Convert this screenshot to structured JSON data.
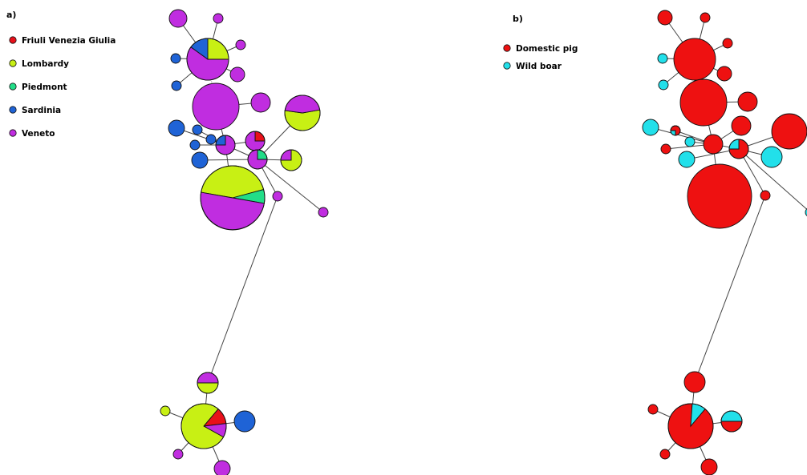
{
  "colors": {
    "friuli": "#e8101a",
    "lombardy": "#c8f014",
    "piedmont": "#22dd88",
    "sardinia": "#1f63d6",
    "veneto": "#c02de0",
    "domestic": "#ee1111",
    "wild": "#22e0ea"
  },
  "panel_a": {
    "label": "a)",
    "legend": [
      {
        "key": "friuli",
        "label": "Friuli Venezia Giulia"
      },
      {
        "key": "lombardy",
        "label": "Lombardy"
      },
      {
        "key": "piedmont",
        "label": "Piedmont"
      },
      {
        "key": "sardinia",
        "label": "Sardinia"
      },
      {
        "key": "veneto",
        "label": "Veneto"
      }
    ]
  },
  "panel_b": {
    "label": "b)",
    "legend": [
      {
        "key": "domestic",
        "label": "Domestic pig"
      },
      {
        "key": "wild",
        "label": "Wild boar"
      }
    ]
  },
  "network": {
    "nodes": [
      {
        "id": "H1",
        "a": [
          {
            "k": "veneto",
            "f": 1
          }
        ],
        "b": [
          {
            "k": "domestic",
            "f": 1
          }
        ]
      },
      {
        "id": "H2",
        "a": [
          {
            "k": "veneto",
            "f": 1
          }
        ],
        "b": [
          {
            "k": "domestic",
            "f": 1
          }
        ]
      },
      {
        "id": "H3",
        "a": [
          {
            "k": "lombardy",
            "f": 0.25
          },
          {
            "k": "veneto",
            "f": 0.6
          },
          {
            "k": "sardinia",
            "f": 0.15
          }
        ],
        "b": [
          {
            "k": "domestic",
            "f": 1
          }
        ]
      },
      {
        "id": "H4",
        "a": [
          {
            "k": "veneto",
            "f": 1
          }
        ],
        "b": [
          {
            "k": "domestic",
            "f": 1
          }
        ]
      },
      {
        "id": "H5",
        "a": [
          {
            "k": "sardinia",
            "f": 1
          }
        ],
        "b": [
          {
            "k": "wild",
            "f": 1
          }
        ]
      },
      {
        "id": "H6",
        "a": [
          {
            "k": "veneto",
            "f": 1
          }
        ],
        "b": [
          {
            "k": "domestic",
            "f": 1
          }
        ]
      },
      {
        "id": "H7",
        "a": [
          {
            "k": "sardinia",
            "f": 1
          }
        ],
        "b": [
          {
            "k": "wild",
            "f": 1
          }
        ]
      },
      {
        "id": "H8",
        "a": [
          {
            "k": "veneto",
            "f": 1
          }
        ],
        "b": [
          {
            "k": "domestic",
            "f": 1
          }
        ]
      },
      {
        "id": "H9",
        "a": [
          {
            "k": "veneto",
            "f": 1
          }
        ],
        "b": [
          {
            "k": "domestic",
            "f": 1
          }
        ]
      },
      {
        "id": "H10",
        "a": [
          {
            "k": "lombardy",
            "f": 0.55
          },
          {
            "k": "veneto",
            "f": 0.45
          }
        ],
        "b": [
          {
            "k": "domestic",
            "f": 1
          }
        ]
      },
      {
        "id": "H11",
        "a": [
          {
            "k": "sardinia",
            "f": 1
          }
        ],
        "b": [
          {
            "k": "wild",
            "f": 1
          }
        ]
      },
      {
        "id": "H12",
        "a": [
          {
            "k": "sardinia",
            "f": 1
          }
        ],
        "b": [
          {
            "k": "domestic",
            "f": 0.75
          },
          {
            "k": "wild",
            "f": 0.25
          }
        ]
      },
      {
        "id": "H13",
        "a": [
          {
            "k": "sardinia",
            "f": 1
          }
        ],
        "b": [
          {
            "k": "wild",
            "f": 1
          }
        ]
      },
      {
        "id": "H14",
        "a": [
          {
            "k": "sardinia",
            "f": 1
          }
        ],
        "b": [
          {
            "k": "domestic",
            "f": 1
          }
        ]
      },
      {
        "id": "H15",
        "a": [
          {
            "k": "veneto",
            "f": 0.75
          },
          {
            "k": "sardinia",
            "f": 0.25
          }
        ],
        "b": [
          {
            "k": "domestic",
            "f": 1
          }
        ]
      },
      {
        "id": "H16",
        "a": [
          {
            "k": "friuli",
            "f": 0.25
          },
          {
            "k": "veneto",
            "f": 0.75
          }
        ],
        "b": [
          {
            "k": "domestic",
            "f": 1
          }
        ]
      },
      {
        "id": "H17",
        "a": [
          {
            "k": "sardinia",
            "f": 1
          }
        ],
        "b": [
          {
            "k": "wild",
            "f": 1
          }
        ]
      },
      {
        "id": "H18",
        "a": [
          {
            "k": "piedmont",
            "f": 0.25
          },
          {
            "k": "veneto",
            "f": 0.75
          }
        ],
        "b": [
          {
            "k": "domestic",
            "f": 0.75
          },
          {
            "k": "wild",
            "f": 0.25
          }
        ]
      },
      {
        "id": "H19",
        "a": [
          {
            "k": "lombardy",
            "f": 0.75
          },
          {
            "k": "veneto",
            "f": 0.25
          }
        ],
        "b": [
          {
            "k": "wild",
            "f": 1
          }
        ]
      },
      {
        "id": "H20",
        "a": [
          {
            "k": "lombardy",
            "f": 0.43
          },
          {
            "k": "piedmont",
            "f": 0.07
          },
          {
            "k": "veneto",
            "f": 0.5
          }
        ],
        "b": [
          {
            "k": "domestic",
            "f": 1
          }
        ]
      },
      {
        "id": "H21",
        "a": [
          {
            "k": "veneto",
            "f": 1
          }
        ],
        "b": [
          {
            "k": "domestic",
            "f": 1
          }
        ]
      },
      {
        "id": "H22",
        "a": [
          {
            "k": "veneto",
            "f": 1
          }
        ],
        "b": [
          {
            "k": "wild",
            "f": 1
          }
        ]
      },
      {
        "id": "H23",
        "a": [
          {
            "k": "lombardy",
            "f": 0.5
          },
          {
            "k": "veneto",
            "f": 0.5
          }
        ],
        "b": [
          {
            "k": "domestic",
            "f": 1
          }
        ]
      },
      {
        "id": "H24",
        "a": [
          {
            "k": "friuli",
            "f": 0.12
          },
          {
            "k": "veneto",
            "f": 0.1
          },
          {
            "k": "lombardy",
            "f": 0.78
          }
        ],
        "b": [
          {
            "k": "domestic",
            "f": 0.9
          },
          {
            "k": "wild",
            "f": 0.1
          }
        ]
      },
      {
        "id": "H25",
        "a": [
          {
            "k": "lombardy",
            "f": 1
          }
        ],
        "b": [
          {
            "k": "domestic",
            "f": 1
          }
        ]
      },
      {
        "id": "H26",
        "a": [
          {
            "k": "sardinia",
            "f": 1
          }
        ],
        "b": [
          {
            "k": "domestic",
            "f": 0.5
          },
          {
            "k": "wild",
            "f": 0.5
          }
        ]
      },
      {
        "id": "H27",
        "a": [
          {
            "k": "veneto",
            "f": 1
          }
        ],
        "b": [
          {
            "k": "domestic",
            "f": 1
          }
        ]
      },
      {
        "id": "H28",
        "a": [
          {
            "k": "veneto",
            "f": 1
          }
        ],
        "b": [
          {
            "k": "domestic",
            "f": 1
          }
        ]
      }
    ],
    "edges": [
      [
        "H3",
        "H1",
        "solid"
      ],
      [
        "H3",
        "H2",
        "solid"
      ],
      [
        "H3",
        "H4",
        "solid"
      ],
      [
        "H3",
        "H5",
        "solid"
      ],
      [
        "H3",
        "H6",
        "solid"
      ],
      [
        "H3",
        "H7",
        "solid"
      ],
      [
        "H3",
        "H8",
        "dotted"
      ],
      [
        "H8",
        "H9",
        "solid"
      ],
      [
        "H8",
        "H15",
        "solid"
      ],
      [
        "H15",
        "H11",
        "solid"
      ],
      [
        "H15",
        "H12",
        "solid"
      ],
      [
        "H15",
        "H13",
        "solid"
      ],
      [
        "H15",
        "H14",
        "solid"
      ],
      [
        "H15",
        "H16",
        "solid"
      ],
      [
        "H15",
        "H18",
        "solid"
      ],
      [
        "H15",
        "H20",
        "solid"
      ],
      [
        "H18",
        "H10",
        "solid"
      ],
      [
        "H18",
        "H17",
        "solid"
      ],
      [
        "H18",
        "H19",
        "solid"
      ],
      [
        "H18",
        "H21",
        "solid"
      ],
      [
        "H18",
        "H22",
        "solid"
      ],
      [
        "H21",
        "H23",
        "solid"
      ],
      [
        "H23",
        "H24",
        "solid"
      ],
      [
        "H24",
        "H25",
        "solid"
      ],
      [
        "H24",
        "H26",
        "solid"
      ],
      [
        "H24",
        "H27",
        "solid"
      ],
      [
        "H24",
        "H28",
        "solid"
      ]
    ]
  }
}
